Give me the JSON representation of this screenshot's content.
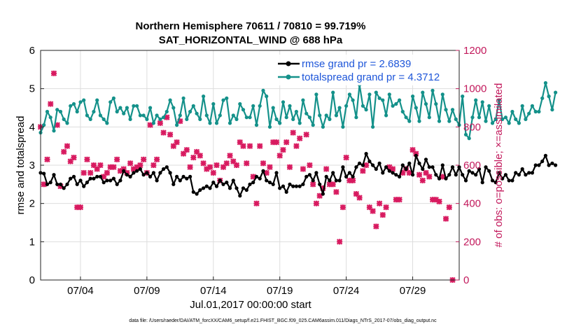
{
  "chart_data": {
    "type": "line",
    "title": "Northern Hemisphere 70611 / 70810 = 99.719%",
    "subtitle": "SAT_HORIZONTAL_WIND @ 688 hPa",
    "xlabel": "Jul.01,2017 00:00:00 start",
    "ylabel_left": "rmse and totalspread",
    "ylabel_right": "# of obs: o=possible; ×=assimilated",
    "xlim": [
      1,
      32.5
    ],
    "ylim_left": [
      0,
      6
    ],
    "ylim_right": [
      0,
      1200
    ],
    "x_ticks": [
      4,
      9,
      14,
      19,
      24,
      29
    ],
    "x_tick_labels": [
      "07/04",
      "07/09",
      "07/14",
      "07/19",
      "07/24",
      "07/29"
    ],
    "yticks_left": [
      0,
      1,
      2,
      3,
      4,
      5,
      6
    ],
    "yticks_right": [
      0,
      200,
      400,
      600,
      800,
      1000,
      1200
    ],
    "grid": true,
    "legend_position": "top-right",
    "series": [
      {
        "name": "rmse grand pr = 2.6839",
        "axis": "left",
        "color": "#000000",
        "marker": "dot",
        "x_start": 1.0,
        "x_step": 0.25,
        "values": [
          2.8,
          2.78,
          2.5,
          2.55,
          2.75,
          2.5,
          2.5,
          2.4,
          2.5,
          2.65,
          2.7,
          2.5,
          2.6,
          2.45,
          2.55,
          2.65,
          2.65,
          2.7,
          2.7,
          2.55,
          2.6,
          2.6,
          2.65,
          2.5,
          2.6,
          2.85,
          2.75,
          2.7,
          2.8,
          2.85,
          2.9,
          2.75,
          2.8,
          2.7,
          2.8,
          2.6,
          2.8,
          2.9,
          2.95,
          2.8,
          2.5,
          2.7,
          2.6,
          2.7,
          2.65,
          2.7,
          2.3,
          2.25,
          2.35,
          2.4,
          2.45,
          2.4,
          2.55,
          2.45,
          2.6,
          2.5,
          2.55,
          2.4,
          2.6,
          2.4,
          2.2,
          2.4,
          2.35,
          2.5,
          2.55,
          2.7,
          2.65,
          2.85,
          2.6,
          2.55,
          2.5,
          2.8,
          2.4,
          2.45,
          2.3,
          2.5,
          2.45,
          2.45,
          2.45,
          2.5,
          2.7,
          2.75,
          2.6,
          2.8,
          2.5,
          2.25,
          2.7,
          2.6,
          2.8,
          2.6,
          2.6,
          2.95,
          2.7,
          2.8,
          2.7,
          2.95,
          3.05,
          3.0,
          3.3,
          3.1,
          3.0,
          2.9,
          3.05,
          2.8,
          2.95,
          2.85,
          2.8,
          2.75,
          2.7,
          3.0,
          2.9,
          3.05,
          2.75,
          3.25,
          3.05,
          2.9,
          3.15,
          2.95,
          2.95,
          2.75,
          2.65,
          3.0,
          2.65,
          2.75,
          2.95,
          2.75,
          2.95,
          2.75,
          2.6,
          2.85,
          2.8,
          2.75,
          2.9,
          2.55,
          2.95,
          2.85,
          2.6,
          2.55,
          2.8,
          2.65,
          2.75,
          2.6,
          2.6,
          2.8,
          2.75,
          2.9,
          2.75,
          2.8,
          2.8,
          3.0,
          3.0,
          3.1,
          3.25,
          3.0,
          3.05,
          3.0
        ]
      },
      {
        "name": "totalspread grand pr = 4.3712",
        "axis": "left",
        "color": "#14918a",
        "marker": "dot",
        "x_start": 1.0,
        "x_step": 0.25,
        "values": [
          3.85,
          4.05,
          4.4,
          4.25,
          3.9,
          4.45,
          4.4,
          4.2,
          4.1,
          4.55,
          4.6,
          4.4,
          4.65,
          4.7,
          4.3,
          4.2,
          4.4,
          4.7,
          4.3,
          4.2,
          4.1,
          4.65,
          4.75,
          4.4,
          4.5,
          4.35,
          4.5,
          4.2,
          4.55,
          4.55,
          4.3,
          4.3,
          4.2,
          4.5,
          4.1,
          4.3,
          4.2,
          4.25,
          4.4,
          4.7,
          4.5,
          4.05,
          4.3,
          4.75,
          4.2,
          4.4,
          4.55,
          4.35,
          4.2,
          4.8,
          4.3,
          4.1,
          4.6,
          4.1,
          4.3,
          4.7,
          4.75,
          4.1,
          4.3,
          4.2,
          4.6,
          4.45,
          4.25,
          4.25,
          4.55,
          4.05,
          4.55,
          4.95,
          4.8,
          4.0,
          4.5,
          4.2,
          4.1,
          4.65,
          4.25,
          4.55,
          4.2,
          4.4,
          4.1,
          4.7,
          4.35,
          4.25,
          4.05,
          4.85,
          4.3,
          4.0,
          4.3,
          4.2,
          4.9,
          4.3,
          4.5,
          4.0,
          4.55,
          4.85,
          4.7,
          4.25,
          5.1,
          4.55,
          4.45,
          4.85,
          4.0,
          4.9,
          4.75,
          4.7,
          4.3,
          4.85,
          4.55,
          4.6,
          4.7,
          4.4,
          4.25,
          4.15,
          4.8,
          4.5,
          4.15,
          4.9,
          4.6,
          4.25,
          4.95,
          4.6,
          4.15,
          4.85,
          4.45,
          4.15,
          4.45,
          4.2,
          4.05,
          4.8,
          3.8,
          3.7,
          4.25,
          4.7,
          4.25,
          4.65,
          4.15,
          4.55,
          4.1,
          4.2,
          4.7,
          4.2,
          4.25,
          4.1,
          4.4,
          4.2,
          4.1,
          4.55,
          4.2,
          4.35,
          4.55,
          4.4,
          4.4,
          4.75,
          5.15,
          4.8,
          4.45,
          4.9
        ]
      },
      {
        "name": "# of obs assimilated",
        "axis": "right",
        "color": "#d81b60",
        "marker": "x",
        "points": [
          [
            1.0,
            800
          ],
          [
            1.25,
            500
          ],
          [
            1.5,
            630
          ],
          [
            1.75,
            920
          ],
          [
            2.0,
            1080
          ],
          [
            2.25,
            810
          ],
          [
            2.5,
            490
          ],
          [
            2.75,
            670
          ],
          [
            3.0,
            700
          ],
          [
            3.25,
            620
          ],
          [
            3.5,
            640
          ],
          [
            3.75,
            380
          ],
          [
            4.0,
            380
          ],
          [
            4.25,
            560
          ],
          [
            4.5,
            630
          ],
          [
            4.75,
            560
          ],
          [
            5.0,
            600
          ],
          [
            5.25,
            580
          ],
          [
            5.5,
            600
          ],
          [
            5.75,
            540
          ],
          [
            6.0,
            560
          ],
          [
            6.25,
            590
          ],
          [
            6.5,
            590
          ],
          [
            6.75,
            630
          ],
          [
            7.0,
            570
          ],
          [
            7.25,
            580
          ],
          [
            7.5,
            560
          ],
          [
            7.75,
            610
          ],
          [
            8.0,
            580
          ],
          [
            8.25,
            590
          ],
          [
            8.5,
            600
          ],
          [
            8.75,
            630
          ],
          [
            9.0,
            560
          ],
          [
            9.25,
            810
          ],
          [
            9.5,
            600
          ],
          [
            9.75,
            630
          ],
          [
            10.0,
            820
          ],
          [
            10.25,
            770
          ],
          [
            10.5,
            850
          ],
          [
            10.75,
            760
          ],
          [
            11.0,
            700
          ],
          [
            11.25,
            720
          ],
          [
            11.5,
            830
          ],
          [
            11.75,
            660
          ],
          [
            12.0,
            680
          ],
          [
            12.25,
            590
          ],
          [
            12.5,
            640
          ],
          [
            12.75,
            670
          ],
          [
            13.0,
            650
          ],
          [
            13.25,
            610
          ],
          [
            13.5,
            580
          ],
          [
            13.75,
            590
          ],
          [
            14.0,
            560
          ],
          [
            14.25,
            600
          ],
          [
            14.5,
            520
          ],
          [
            14.75,
            590
          ],
          [
            15.0,
            610
          ],
          [
            15.25,
            650
          ],
          [
            15.5,
            620
          ],
          [
            15.75,
            600
          ],
          [
            16.0,
            720
          ],
          [
            16.25,
            700
          ],
          [
            16.5,
            610
          ],
          [
            16.75,
            700
          ],
          [
            17.0,
            540
          ],
          [
            17.25,
            400
          ],
          [
            17.5,
            700
          ],
          [
            17.75,
            610
          ],
          [
            18.0,
            560
          ],
          [
            18.25,
            590
          ],
          [
            18.5,
            720
          ],
          [
            18.75,
            720
          ],
          [
            19.0,
            650
          ],
          [
            19.25,
            680
          ],
          [
            19.5,
            720
          ],
          [
            19.75,
            590
          ],
          [
            20.0,
            770
          ],
          [
            20.25,
            700
          ],
          [
            20.5,
            740
          ],
          [
            20.75,
            580
          ],
          [
            21.0,
            760
          ],
          [
            21.25,
            600
          ],
          [
            21.5,
            500
          ],
          [
            21.75,
            400
          ],
          [
            22.0,
            440
          ],
          [
            22.25,
            480
          ],
          [
            22.5,
            580
          ],
          [
            22.75,
            500
          ],
          [
            23.0,
            500
          ],
          [
            23.25,
            460
          ],
          [
            23.5,
            200
          ],
          [
            23.75,
            380
          ],
          [
            24.0,
            640
          ],
          [
            24.25,
            520
          ],
          [
            24.5,
            520
          ],
          [
            24.75,
            450
          ],
          [
            25.0,
            430
          ],
          [
            25.25,
            570
          ],
          [
            25.5,
            600
          ],
          [
            25.75,
            380
          ],
          [
            26.0,
            360
          ],
          [
            26.25,
            280
          ],
          [
            26.5,
            400
          ],
          [
            26.75,
            340
          ],
          [
            27.0,
            380
          ],
          [
            27.25,
            590
          ],
          [
            27.5,
            580
          ],
          [
            27.75,
            420
          ],
          [
            28.0,
            420
          ],
          [
            28.25,
            560
          ],
          [
            28.5,
            580
          ],
          [
            28.75,
            560
          ],
          [
            29.0,
            680
          ],
          [
            29.25,
            660
          ],
          [
            29.5,
            550
          ],
          [
            29.75,
            520
          ],
          [
            30.0,
            560
          ],
          [
            30.25,
            540
          ],
          [
            30.5,
            420
          ],
          [
            30.75,
            420
          ],
          [
            31.0,
            410
          ],
          [
            31.25,
            540
          ],
          [
            31.5,
            320
          ],
          [
            31.75,
            380
          ],
          [
            32.0,
            0
          ]
        ]
      }
    ]
  },
  "footer": "data file: /Users/raeder/DAI/ATM_forcXX/CAM6_setup/f.e21.FHIST_BGC.f09_025.CAM6assim.011/Diags_NTrS_2017-07/obs_diag_output.nc"
}
